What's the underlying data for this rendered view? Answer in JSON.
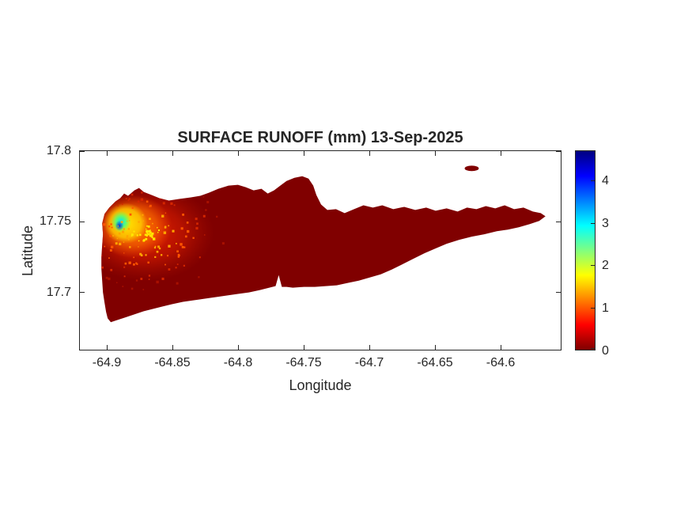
{
  "figure": {
    "background_color": "#ffffff",
    "axis_color": "#262626",
    "land_zero_color": "#800000"
  },
  "chart_data": {
    "type": "heatmap",
    "title": "SURFACE RUNOFF (mm) 13-Sep-2025",
    "xlabel": "Longitude",
    "ylabel": "Latitude",
    "xlim": [
      -64.92,
      -64.555
    ],
    "ylim": [
      17.66,
      17.8
    ],
    "xticks": [
      -64.9,
      -64.85,
      -64.8,
      -64.75,
      -64.7,
      -64.65,
      -64.6
    ],
    "yticks": [
      17.7,
      17.75,
      17.8
    ],
    "grid": false,
    "legend": false,
    "colorbar": {
      "position": "right",
      "min": 0,
      "max": 4.7,
      "ticks": [
        0,
        1,
        2,
        3,
        4
      ],
      "colormap": "jet reversed (0 = dark red, max = dark blue)",
      "stops": [
        "#800000",
        "#ff0000",
        "#ffff00",
        "#00ffff",
        "#0000ff",
        "#000080"
      ]
    },
    "region": {
      "name": "St. Croix-shaped island landmass",
      "background_value_mm": 0,
      "islet": {
        "lon": -64.62,
        "lat": 17.787,
        "value_mm": 0
      }
    },
    "hotspot": {
      "description": "Localized runoff maximum on the west end of the island, speckled orange/red field with yellow ring and cyan-blue core at the west coast",
      "center_lon": -64.886,
      "center_lat": 17.745,
      "peak_value_mm": 4.5,
      "extent_lon": [
        -64.905,
        -64.8
      ],
      "extent_lat": [
        17.705,
        17.765
      ],
      "speckle_palette": [
        "#ffe600",
        "#ffa500",
        "#ff5500",
        "#d42600",
        "#a81000"
      ]
    }
  }
}
